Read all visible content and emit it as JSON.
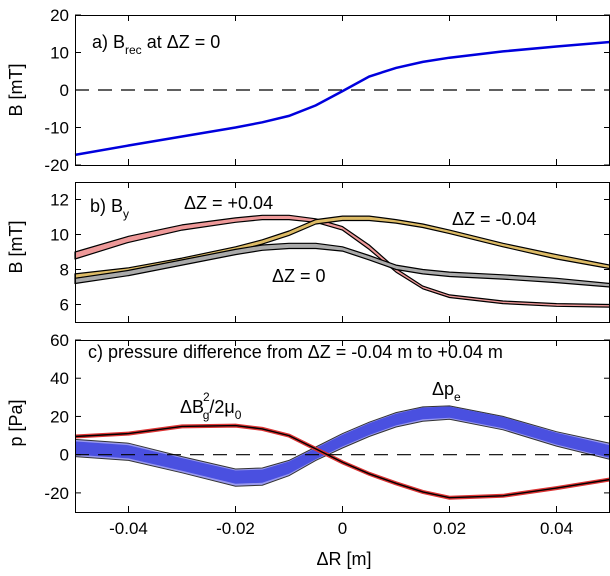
{
  "chart_data": [
    {
      "type": "line",
      "panel": "a",
      "annotation": {
        "prefix": "a) B",
        "sub": "rec",
        "suffix": " at ΔZ = 0"
      },
      "ylabel": "B [mT]",
      "xlim": [
        -0.05,
        0.05
      ],
      "ylim": [
        -20,
        20
      ],
      "yticks": [
        "20",
        "10",
        "0",
        "-10",
        "-20"
      ],
      "ytick_values": [
        20,
        10,
        0,
        -10,
        -20
      ],
      "zero_line": "dashed",
      "color": "#0000dd",
      "x": [
        -0.05,
        -0.04,
        -0.03,
        -0.02,
        -0.015,
        -0.01,
        -0.005,
        0,
        0.005,
        0.01,
        0.015,
        0.02,
        0.03,
        0.04,
        0.05
      ],
      "series": [
        {
          "values": [
            -17.3,
            -14.8,
            -12.4,
            -10.0,
            -8.6,
            -6.9,
            -4.1,
            -0.3,
            3.6,
            5.9,
            7.5,
            8.6,
            10.3,
            11.6,
            12.8
          ]
        }
      ]
    },
    {
      "type": "area",
      "panel": "b",
      "annotation": {
        "prefix": "b) B",
        "sub": "y",
        "suffix": ""
      },
      "ylabel": "B [mT]",
      "xlim": [
        -0.05,
        0.05
      ],
      "ylim": [
        5,
        13
      ],
      "yticks": [
        "12",
        "10",
        "8",
        "6"
      ],
      "ytick_values": [
        12,
        10,
        8,
        6
      ],
      "x": [
        -0.05,
        -0.04,
        -0.03,
        -0.02,
        -0.015,
        -0.01,
        -0.005,
        0,
        0.005,
        0.01,
        0.015,
        0.02,
        0.03,
        0.04,
        0.05
      ],
      "series": [
        {
          "label": "ΔZ = +0.04",
          "color": "#ee9999",
          "upper": [
            9.0,
            9.9,
            10.55,
            10.95,
            11.1,
            11.1,
            10.9,
            10.45,
            9.4,
            8.05,
            7.05,
            6.55,
            6.2,
            6.05,
            6.0
          ],
          "lower": [
            8.6,
            9.55,
            10.25,
            10.7,
            10.85,
            10.85,
            10.7,
            10.25,
            9.15,
            7.85,
            6.9,
            6.4,
            6.05,
            5.9,
            5.85
          ]
        },
        {
          "label": "ΔZ = -0.04",
          "color": "#ddbb66",
          "upper": [
            7.75,
            8.1,
            8.65,
            9.3,
            9.7,
            10.2,
            10.85,
            11.05,
            11.05,
            10.85,
            10.6,
            10.25,
            9.5,
            8.85,
            8.25
          ],
          "lower": [
            7.5,
            7.85,
            8.4,
            9.05,
            9.45,
            9.95,
            10.6,
            10.8,
            10.8,
            10.65,
            10.4,
            10.05,
            9.3,
            8.6,
            8.05
          ]
        },
        {
          "label": "ΔZ = 0",
          "color": "#aaaaaa",
          "upper": [
            7.5,
            7.95,
            8.55,
            9.15,
            9.4,
            9.5,
            9.5,
            9.3,
            8.8,
            8.25,
            8.0,
            7.85,
            7.7,
            7.5,
            7.2
          ],
          "lower": [
            7.2,
            7.65,
            8.25,
            8.85,
            9.1,
            9.2,
            9.2,
            9.05,
            8.55,
            8.0,
            7.75,
            7.6,
            7.45,
            7.25,
            7.0
          ]
        }
      ]
    },
    {
      "type": "area",
      "panel": "c",
      "annotation": {
        "text": "c) pressure difference from ΔZ = -0.04 m to +0.04 m"
      },
      "ylabel": "p [Pa]",
      "xlabel": "ΔR [m]",
      "xlim": [
        -0.05,
        0.05
      ],
      "ylim": [
        -30,
        60
      ],
      "xticks": [
        "-0.04",
        "-0.02",
        "0",
        "0.02",
        "0.04"
      ],
      "xtick_values": [
        -0.04,
        -0.02,
        0,
        0.02,
        0.04
      ],
      "yticks": [
        "60",
        "40",
        "20",
        "0",
        "-20"
      ],
      "ytick_values": [
        60,
        40,
        20,
        0,
        -20
      ],
      "zero_line": "dashed",
      "x": [
        -0.05,
        -0.04,
        -0.03,
        -0.02,
        -0.015,
        -0.01,
        -0.005,
        0,
        0.005,
        0.01,
        0.015,
        0.02,
        0.03,
        0.04,
        0.05
      ],
      "series": [
        {
          "label_main": "Δp",
          "label_sub": "e",
          "color": "#4a50e0",
          "edge": "#9999ee",
          "upper": [
            8,
            6,
            -1,
            -7.5,
            -7,
            -3,
            4,
            11,
            17,
            22,
            25,
            25.5,
            20,
            12,
            6
          ],
          "mid": [
            3.5,
            1.5,
            -5,
            -11.5,
            -11,
            -6.5,
            0.5,
            7.5,
            13.5,
            18.5,
            22,
            22.5,
            17,
            8.5,
            1.5
          ],
          "lower": [
            -1,
            -3,
            -9.5,
            -16.5,
            -16,
            -11,
            -3,
            3.5,
            9.5,
            14.5,
            17.5,
            18.5,
            13,
            4.5,
            -2.5
          ]
        },
        {
          "label_main": "ΔB",
          "label_sup": "2",
          "label_sub": "g",
          "label_tail": "/2μ",
          "label_sub2": "0",
          "color": "#dd3333",
          "values": [
            9.5,
            11,
            14.8,
            15.2,
            13.5,
            10,
            3,
            -4,
            -10,
            -15,
            -19.5,
            -22.5,
            -21.5,
            -17.5,
            -13
          ]
        }
      ]
    }
  ]
}
